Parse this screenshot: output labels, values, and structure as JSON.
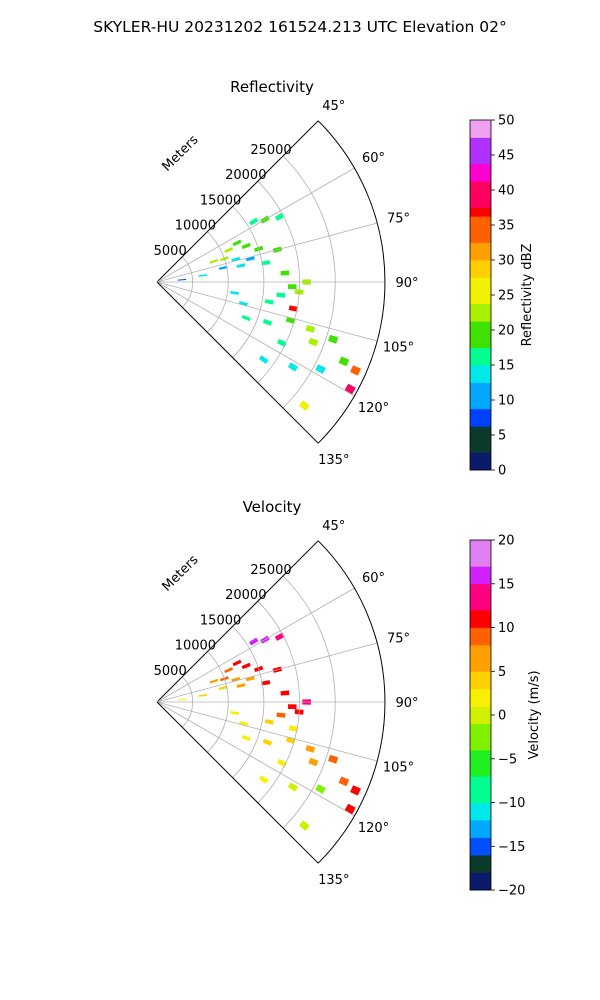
{
  "figure": {
    "suptitle": "SKYLER-HU  20231202  161524.213 UTC Elevation 02°"
  },
  "chart_data": [
    {
      "type": "heatmap",
      "title": "Reflectivity",
      "projection": "polar-sector",
      "azimuth_range_deg": [
        45,
        135
      ],
      "azimuth_ticks": [
        "45°",
        "60°",
        "75°",
        "90°",
        "105°",
        "120°",
        "135°"
      ],
      "range_label": "Meters",
      "range_max": 32000,
      "range_ticks": [
        5000,
        10000,
        15000,
        20000,
        25000
      ],
      "range_tick_labels": [
        "5000",
        "10000",
        "15000",
        "20000",
        "25000"
      ],
      "grid": true,
      "colorbar": {
        "label": "Reflectivity dBZ",
        "range": [
          0,
          50
        ],
        "ticks": [
          "0",
          "5",
          "10",
          "15",
          "20",
          "25",
          "30",
          "35",
          "40",
          "45",
          "50"
        ]
      },
      "cells": [
        {
          "az": 58,
          "r": 16000,
          "value": 17
        },
        {
          "az": 60,
          "r": 17500,
          "value": 18
        },
        {
          "az": 62,
          "r": 19500,
          "value": 15
        },
        {
          "az": 64,
          "r": 12500,
          "value": 19
        },
        {
          "az": 66,
          "r": 11000,
          "value": 22
        },
        {
          "az": 68,
          "r": 13500,
          "value": 20
        },
        {
          "az": 70,
          "r": 8500,
          "value": 21
        },
        {
          "az": 71,
          "r": 10000,
          "value": 23
        },
        {
          "az": 72,
          "r": 15000,
          "value": 20
        },
        {
          "az": 74,
          "r": 11500,
          "value": 12
        },
        {
          "az": 75,
          "r": 17500,
          "value": 18
        },
        {
          "az": 76,
          "r": 13500,
          "value": 10
        },
        {
          "az": 78,
          "r": 9500,
          "value": 11
        },
        {
          "az": 79,
          "r": 12000,
          "value": 14
        },
        {
          "az": 80,
          "r": 15500,
          "value": 17
        },
        {
          "az": 82,
          "r": 6500,
          "value": 13
        },
        {
          "az": 85,
          "r": 3500,
          "value": 6
        },
        {
          "az": 86,
          "r": 18000,
          "value": 20
        },
        {
          "az": 90,
          "r": 21000,
          "value": 22
        },
        {
          "az": 92,
          "r": 19000,
          "value": 18
        },
        {
          "az": 94,
          "r": 20000,
          "value": 21
        },
        {
          "az": 96,
          "r": 17500,
          "value": 15
        },
        {
          "az": 98,
          "r": 11000,
          "value": 12
        },
        {
          "az": 100,
          "r": 16000,
          "value": 17
        },
        {
          "az": 101,
          "r": 19500,
          "value": 36
        },
        {
          "az": 104,
          "r": 12500,
          "value": 14
        },
        {
          "az": 106,
          "r": 19500,
          "value": 18
        },
        {
          "az": 107,
          "r": 22500,
          "value": 21
        },
        {
          "az": 108,
          "r": 26000,
          "value": 20
        },
        {
          "az": 110,
          "r": 16500,
          "value": 17
        },
        {
          "az": 111,
          "r": 23500,
          "value": 22
        },
        {
          "az": 112,
          "r": 13500,
          "value": 15
        },
        {
          "az": 113,
          "r": 28500,
          "value": 18
        },
        {
          "az": 114,
          "r": 30500,
          "value": 34
        },
        {
          "az": 116,
          "r": 19500,
          "value": 16
        },
        {
          "az": 118,
          "r": 26000,
          "value": 14
        },
        {
          "az": 119,
          "r": 31000,
          "value": 40
        },
        {
          "az": 122,
          "r": 22500,
          "value": 13
        },
        {
          "az": 126,
          "r": 18500,
          "value": 12
        },
        {
          "az": 130,
          "r": 27000,
          "value": 24
        }
      ]
    },
    {
      "type": "heatmap",
      "title": "Velocity",
      "projection": "polar-sector",
      "azimuth_range_deg": [
        45,
        135
      ],
      "azimuth_ticks": [
        "45°",
        "60°",
        "75°",
        "90°",
        "105°",
        "120°",
        "135°"
      ],
      "range_label": "Meters",
      "range_max": 32000,
      "range_ticks": [
        5000,
        10000,
        15000,
        20000,
        25000
      ],
      "range_tick_labels": [
        "5000",
        "10000",
        "15000",
        "20000",
        "25000"
      ],
      "grid": true,
      "colorbar": {
        "label": "Velocity (m/s)",
        "range": [
          -20,
          20
        ],
        "ticks": [
          "−20",
          "−15",
          "−10",
          "−5",
          "0",
          "5",
          "10",
          "15",
          "20"
        ]
      },
      "cells": [
        {
          "az": 58,
          "r": 16000,
          "value": 15
        },
        {
          "az": 60,
          "r": 17500,
          "value": 16
        },
        {
          "az": 62,
          "r": 19500,
          "value": 14
        },
        {
          "az": 64,
          "r": 12500,
          "value": 10
        },
        {
          "az": 66,
          "r": 11000,
          "value": 9
        },
        {
          "az": 68,
          "r": 13500,
          "value": 10
        },
        {
          "az": 70,
          "r": 8500,
          "value": 7
        },
        {
          "az": 71,
          "r": 10000,
          "value": 8
        },
        {
          "az": 72,
          "r": 15000,
          "value": 11
        },
        {
          "az": 74,
          "r": 11500,
          "value": 6
        },
        {
          "az": 75,
          "r": 17500,
          "value": 11
        },
        {
          "az": 76,
          "r": 13500,
          "value": 5
        },
        {
          "az": 78,
          "r": 9500,
          "value": 4
        },
        {
          "az": 79,
          "r": 12000,
          "value": 6
        },
        {
          "az": 80,
          "r": 15500,
          "value": 10
        },
        {
          "az": 82,
          "r": 6500,
          "value": 3
        },
        {
          "az": 85,
          "r": 3500,
          "value": 1
        },
        {
          "az": 86,
          "r": 18000,
          "value": 11
        },
        {
          "az": 90,
          "r": 21000,
          "value": 12
        },
        {
          "az": 92,
          "r": 19000,
          "value": 10
        },
        {
          "az": 94,
          "r": 20000,
          "value": 11
        },
        {
          "az": 96,
          "r": 17500,
          "value": 8
        },
        {
          "az": 98,
          "r": 11000,
          "value": 2
        },
        {
          "az": 100,
          "r": 16000,
          "value": 3
        },
        {
          "az": 101,
          "r": 19500,
          "value": 1
        },
        {
          "az": 104,
          "r": 12500,
          "value": 1
        },
        {
          "az": 106,
          "r": 19500,
          "value": 3
        },
        {
          "az": 107,
          "r": 22500,
          "value": 6
        },
        {
          "az": 108,
          "r": 26000,
          "value": 8
        },
        {
          "az": 110,
          "r": 16500,
          "value": 4
        },
        {
          "az": 111,
          "r": 23500,
          "value": 7
        },
        {
          "az": 112,
          "r": 13500,
          "value": 2
        },
        {
          "az": 113,
          "r": 28500,
          "value": 9
        },
        {
          "az": 114,
          "r": 30500,
          "value": 11
        },
        {
          "az": 116,
          "r": 19500,
          "value": 1
        },
        {
          "az": 118,
          "r": 26000,
          "value": -3
        },
        {
          "az": 119,
          "r": 31000,
          "value": 10
        },
        {
          "az": 122,
          "r": 22500,
          "value": 0
        },
        {
          "az": 126,
          "r": 18500,
          "value": 1
        },
        {
          "az": 130,
          "r": 27000,
          "value": 0
        }
      ]
    }
  ]
}
